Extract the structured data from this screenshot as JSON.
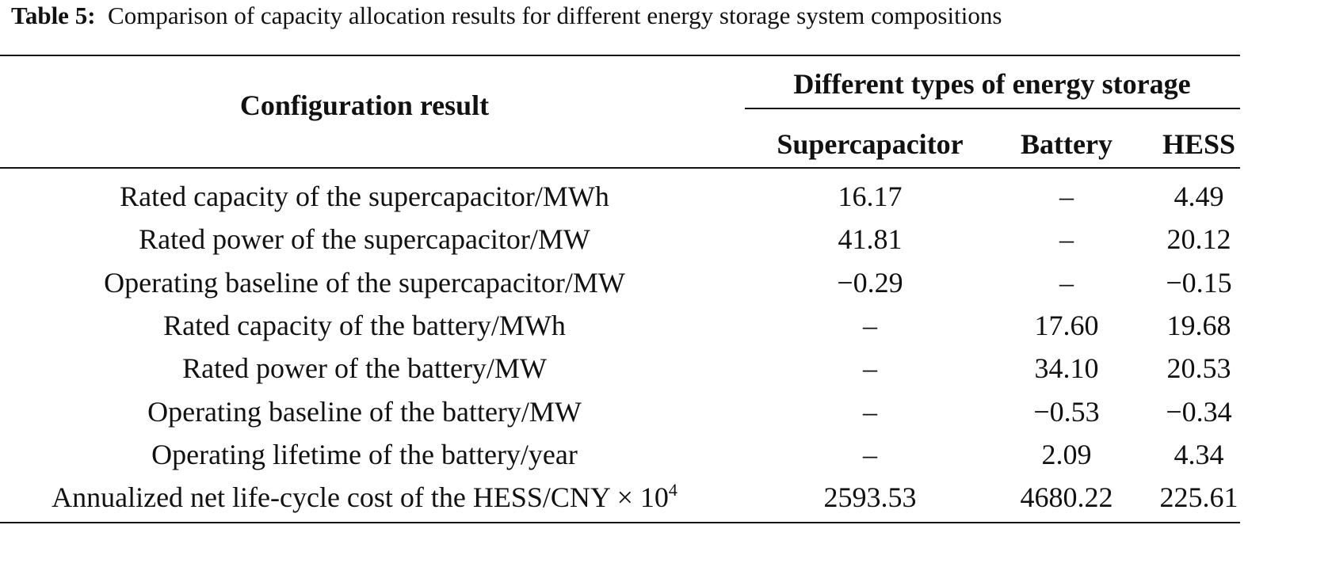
{
  "caption": {
    "label": "Table 5:",
    "text": "Comparison of capacity allocation results for different energy storage system compositions"
  },
  "table": {
    "row_header": "Configuration result",
    "group_header": "Different types of energy storage",
    "columns": [
      "Supercapacitor",
      "Battery",
      "HESS"
    ],
    "rows": [
      {
        "label": "Rated capacity of the supercapacitor/MWh",
        "cells": [
          "16.17",
          "–",
          "4.49"
        ]
      },
      {
        "label": "Rated power of the supercapacitor/MW",
        "cells": [
          "41.81",
          "–",
          "20.12"
        ]
      },
      {
        "label": "Operating baseline of the supercapacitor/MW",
        "cells": [
          "−0.29",
          "–",
          "−0.15"
        ]
      },
      {
        "label": "Rated capacity of the battery/MWh",
        "cells": [
          "–",
          "17.60",
          "19.68"
        ]
      },
      {
        "label": "Rated power of the battery/MW",
        "cells": [
          "–",
          "34.10",
          "20.53"
        ]
      },
      {
        "label": "Operating baseline of the battery/MW",
        "cells": [
          "–",
          "−0.53",
          "−0.34"
        ]
      },
      {
        "label": "Operating lifetime of the battery/year",
        "cells": [
          "–",
          "2.09",
          "4.34"
        ]
      },
      {
        "label": "Annualized net life-cycle cost of the HESS/CNY × 10",
        "label_sup": "4",
        "cells": [
          "2593.53",
          "4680.22",
          "225.61"
        ]
      }
    ]
  }
}
